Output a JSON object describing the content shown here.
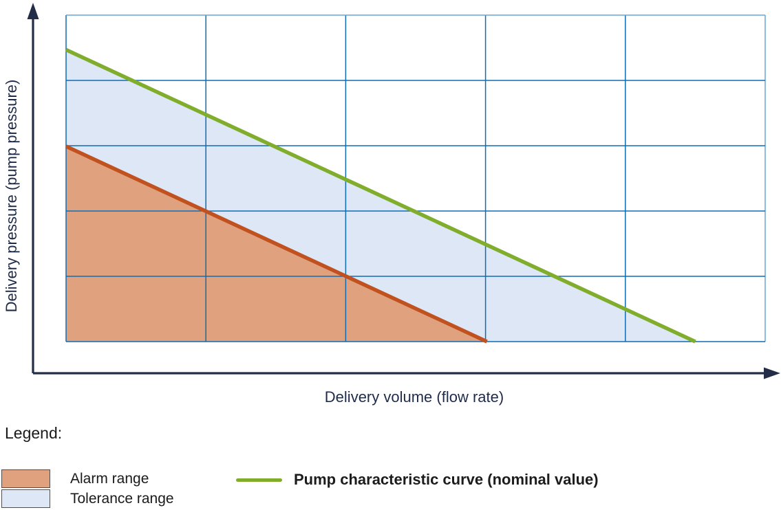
{
  "chart": {
    "x_axis_label": "Delivery volume (flow rate)",
    "y_axis_label": "Delivery pressure (pump pressure)"
  },
  "legend": {
    "title": "Legend:",
    "items": [
      {
        "label": "Alarm range",
        "swatch_color_key": "alarm_fill"
      },
      {
        "label": "Tolerance range",
        "swatch_color_key": "tolerance_fill"
      },
      {
        "label": "Pump characteristic curve (nominal value)",
        "swatch_color_key": "curve_green"
      }
    ]
  },
  "colors": {
    "axis": "#232d48",
    "grid": "#0f6cb3",
    "grid_light": "#67a6d7",
    "alarm_fill": "#e0a27e",
    "tolerance_fill": "#dde7f5",
    "alarm_line": "#c1511f",
    "curve_green": "#80ad2b",
    "swatch_border": "#4d4d4d",
    "text_dark": "#1a1a1a",
    "text_navy": "#1f2b4a"
  },
  "chart_data": {
    "type": "area",
    "title": "",
    "xlabel": "Delivery volume (flow rate)",
    "ylabel": "Delivery pressure (pump pressure)",
    "axes_numeric": false,
    "x_range_units": [
      0,
      5
    ],
    "y_range_units": [
      0,
      5
    ],
    "grid": {
      "columns": 5,
      "rows": 5,
      "visible": true
    },
    "legend_position": "bottom",
    "series": [
      {
        "name": "Pump characteristic curve (nominal value)",
        "type": "line",
        "color_key": "curve_green",
        "points": [
          [
            0,
            4.47
          ],
          [
            4.5,
            0
          ]
        ]
      },
      {
        "name": "Alarm range boundary",
        "type": "line",
        "color_key": "alarm_line",
        "points": [
          [
            0,
            2.99
          ],
          [
            3.01,
            0
          ]
        ]
      }
    ],
    "regions": [
      {
        "name": "Tolerance range",
        "color_key": "tolerance_fill",
        "description": "area between alarm boundary and nominal pump curve",
        "polygon": [
          [
            0,
            4.47
          ],
          [
            4.5,
            0
          ],
          [
            0,
            0
          ]
        ]
      },
      {
        "name": "Alarm range",
        "color_key": "alarm_fill",
        "description": "area below alarm boundary line",
        "polygon": [
          [
            0,
            2.99
          ],
          [
            3.01,
            0
          ],
          [
            0,
            0
          ]
        ]
      }
    ]
  }
}
